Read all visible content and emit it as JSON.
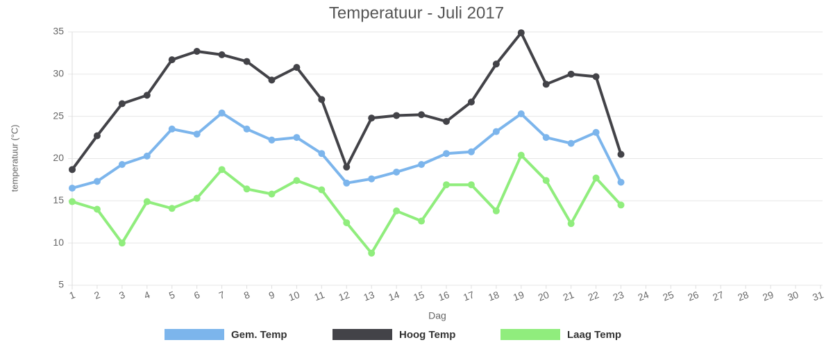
{
  "chart_data": {
    "type": "line",
    "title": "Temperatuur - Juli 2017",
    "x_label": "Dag",
    "y_label": "temperatuur (°C)",
    "categories": [
      "1",
      "2",
      "3",
      "4",
      "5",
      "6",
      "7",
      "8",
      "9",
      "10",
      "11",
      "12",
      "13",
      "14",
      "15",
      "16",
      "17",
      "18",
      "19",
      "20",
      "21",
      "22",
      "23",
      "24",
      "25",
      "26",
      "27",
      "28",
      "29",
      "30",
      "31"
    ],
    "ylim": [
      5,
      35
    ],
    "yticks": [
      5,
      10,
      15,
      20,
      25,
      30,
      35
    ],
    "grid": true,
    "legend": "bottom",
    "series": [
      {
        "name": "Gem. Temp",
        "color": "#7cb5ec",
        "values": [
          16.5,
          17.3,
          19.3,
          20.3,
          23.5,
          22.9,
          25.4,
          23.5,
          22.2,
          22.5,
          20.6,
          17.1,
          17.6,
          18.4,
          19.3,
          20.6,
          20.8,
          23.2,
          25.3,
          22.5,
          21.8,
          23.1,
          17.2,
          null,
          null,
          null,
          null,
          null,
          null,
          null,
          null
        ]
      },
      {
        "name": "Hoog Temp",
        "color": "#434348",
        "values": [
          18.7,
          22.7,
          26.5,
          27.5,
          31.7,
          32.7,
          32.3,
          31.5,
          29.3,
          30.8,
          27.0,
          19.0,
          24.8,
          25.1,
          25.2,
          24.4,
          26.7,
          31.2,
          34.9,
          28.8,
          30.0,
          29.7,
          20.5,
          null,
          null,
          null,
          null,
          null,
          null,
          null,
          null
        ]
      },
      {
        "name": "Laag Temp",
        "color": "#90ed7d",
        "values": [
          14.9,
          14.0,
          10.0,
          14.9,
          14.1,
          15.3,
          18.7,
          16.4,
          15.8,
          17.4,
          16.3,
          12.4,
          8.8,
          13.8,
          12.6,
          16.9,
          16.9,
          13.8,
          20.4,
          17.4,
          12.3,
          17.7,
          14.5,
          null,
          null,
          null,
          null,
          null,
          null,
          null,
          null
        ]
      }
    ]
  }
}
